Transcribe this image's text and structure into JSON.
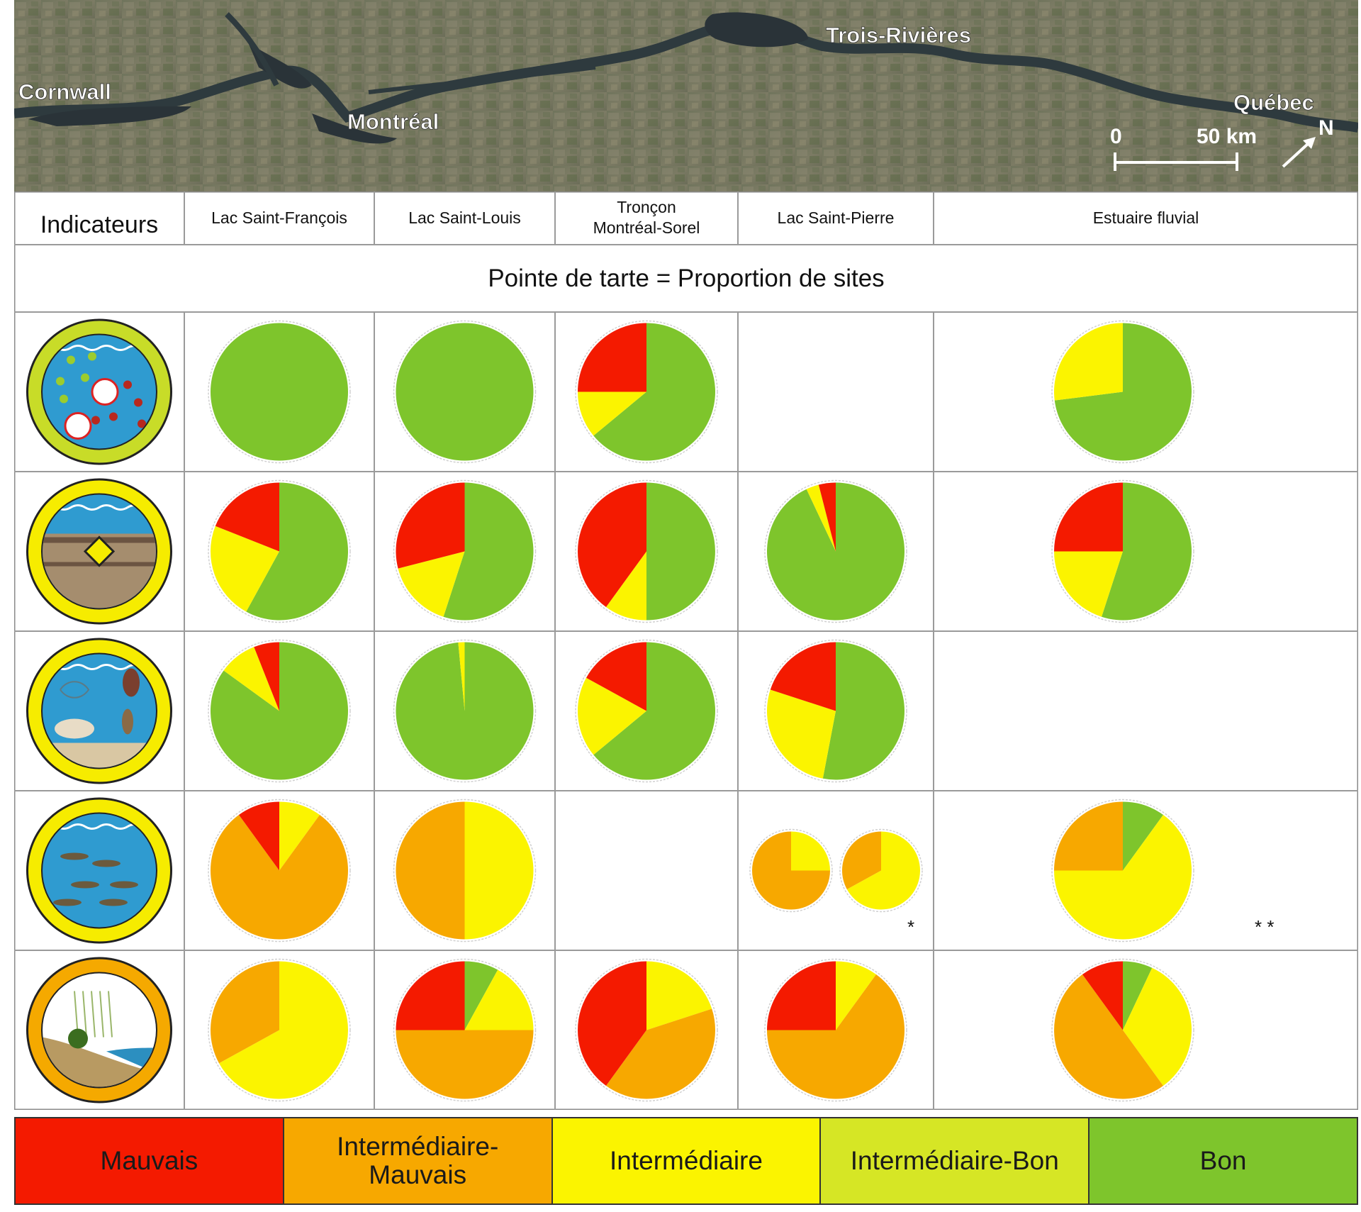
{
  "map": {
    "places": [
      "Cornwall",
      "Montréal",
      "Trois-Rivières",
      "Québec"
    ],
    "scale_start": "0",
    "scale_end": "50 km",
    "north": "N"
  },
  "table": {
    "indicators_header": "Indicateurs",
    "sectors": [
      "Lac Saint-François",
      "Lac Saint-Louis",
      "Tronçon\nMontréal-Sorel",
      "Lac Saint-Pierre",
      "Estuaire fluvial"
    ],
    "subtitle": "Pointe de tarte = Proportion de sites",
    "indicator_icons": [
      "nutrients-icon",
      "sediment-icon",
      "invertebrates-icon",
      "fish-icon",
      "wetland-plants-icon"
    ],
    "indicator_ring_colors": [
      "#c8dc28",
      "#f6ec00",
      "#f6ec00",
      "#f6ec00",
      "#f5a900"
    ]
  },
  "colors": {
    "Mauvais": "#f41a00",
    "Intermédiaire-Mauvais": "#f7a800",
    "Intermédiaire": "#fbf400",
    "Intermédiaire-Bon": "#d6e625",
    "Bon": "#7ec52c"
  },
  "legend": [
    {
      "label": "Mauvais",
      "color": "#f41a00"
    },
    {
      "label": "Intermédiaire-\nMauvais",
      "color": "#f7a800"
    },
    {
      "label": "Intermédiaire",
      "color": "#fbf400"
    },
    {
      "label": "Intermédiaire-Bon",
      "color": "#d6e625"
    },
    {
      "label": "Bon",
      "color": "#7ec52c"
    }
  ],
  "chart_data": {
    "type": "pie",
    "title": "Pointe de tarte = Proportion de sites",
    "categories": [
      "Mauvais",
      "Intermédiaire-Mauvais",
      "Intermédiaire",
      "Intermédiaire-Bon",
      "Bon"
    ],
    "rows": [
      {
        "row": 1,
        "cells": [
          {
            "sector": "Lac Saint-François",
            "pies": [
              {
                "Bon": 1.0
              }
            ]
          },
          {
            "sector": "Lac Saint-Louis",
            "pies": [
              {
                "Bon": 1.0
              }
            ]
          },
          {
            "sector": "Tronçon Montréal-Sorel",
            "pies": [
              {
                "Bon": 0.64,
                "Intermédiaire": 0.11,
                "Mauvais": 0.25
              }
            ]
          },
          {
            "sector": "Lac Saint-Pierre",
            "pies": []
          },
          {
            "sector": "Estuaire fluvial",
            "pies": [
              {
                "Bon": 0.73,
                "Intermédiaire": 0.27
              }
            ]
          }
        ]
      },
      {
        "row": 2,
        "cells": [
          {
            "sector": "Lac Saint-François",
            "pies": [
              {
                "Bon": 0.58,
                "Intermédiaire": 0.23,
                "Mauvais": 0.19
              }
            ]
          },
          {
            "sector": "Lac Saint-Louis",
            "pies": [
              {
                "Bon": 0.55,
                "Intermédiaire": 0.16,
                "Mauvais": 0.29
              }
            ]
          },
          {
            "sector": "Tronçon Montréal-Sorel",
            "pies": [
              {
                "Bon": 0.5,
                "Intermédiaire": 0.1,
                "Mauvais": 0.4
              }
            ]
          },
          {
            "sector": "Lac Saint-Pierre",
            "pies": [
              {
                "Bon": 0.93,
                "Intermédiaire": 0.03,
                "Mauvais": 0.04
              }
            ]
          },
          {
            "sector": "Estuaire fluvial",
            "pies": [
              {
                "Bon": 0.55,
                "Intermédiaire": 0.2,
                "Mauvais": 0.25
              }
            ]
          }
        ]
      },
      {
        "row": 3,
        "cells": [
          {
            "sector": "Lac Saint-François",
            "pies": [
              {
                "Bon": 0.85,
                "Intermédiaire": 0.09,
                "Mauvais": 0.06
              }
            ]
          },
          {
            "sector": "Lac Saint-Louis",
            "pies": [
              {
                "Bon": 0.985,
                "Intermédiaire": 0.015
              }
            ]
          },
          {
            "sector": "Tronçon Montréal-Sorel",
            "pies": [
              {
                "Bon": 0.64,
                "Intermédiaire": 0.19,
                "Mauvais": 0.17
              }
            ]
          },
          {
            "sector": "Lac Saint-Pierre",
            "pies": [
              {
                "Bon": 0.53,
                "Intermédiaire": 0.27,
                "Mauvais": 0.2
              }
            ]
          },
          {
            "sector": "Estuaire fluvial",
            "pies": []
          }
        ]
      },
      {
        "row": 4,
        "cells": [
          {
            "sector": "Lac Saint-François",
            "pies": [
              {
                "Intermédiaire": 0.1,
                "Intermédiaire-Mauvais": 0.8,
                "Mauvais": 0.1
              }
            ]
          },
          {
            "sector": "Lac Saint-Louis",
            "pies": [
              {
                "Intermédiaire": 0.5,
                "Intermédiaire-Mauvais": 0.5
              }
            ]
          },
          {
            "sector": "Tronçon Montréal-Sorel",
            "pies": []
          },
          {
            "sector": "Lac Saint-Pierre",
            "pies": [
              {
                "Intermédiaire": 0.25,
                "Intermédiaire-Mauvais": 0.75
              },
              {
                "Intermédiaire": 0.67,
                "Intermédiaire-Mauvais": 0.33
              }
            ],
            "note": "*"
          },
          {
            "sector": "Estuaire fluvial",
            "pies": [
              {
                "Bon": 0.1,
                "Intermédiaire": 0.65,
                "Intermédiaire-Mauvais": 0.25
              }
            ],
            "note": "* *"
          }
        ]
      },
      {
        "row": 5,
        "cells": [
          {
            "sector": "Lac Saint-François",
            "pies": [
              {
                "Intermédiaire": 0.67,
                "Intermédiaire-Mauvais": 0.33
              }
            ]
          },
          {
            "sector": "Lac Saint-Louis",
            "pies": [
              {
                "Bon": 0.08,
                "Intermédiaire": 0.17,
                "Intermédiaire-Mauvais": 0.5,
                "Mauvais": 0.25
              }
            ]
          },
          {
            "sector": "Tronçon Montréal-Sorel",
            "pies": [
              {
                "Intermédiaire": 0.2,
                "Intermédiaire-Mauvais": 0.4,
                "Mauvais": 0.4
              }
            ]
          },
          {
            "sector": "Lac Saint-Pierre",
            "pies": [
              {
                "Intermédiaire": 0.1,
                "Intermédiaire-Mauvais": 0.65,
                "Mauvais": 0.25
              }
            ]
          },
          {
            "sector": "Estuaire fluvial",
            "pies": [
              {
                "Bon": 0.07,
                "Intermédiaire": 0.33,
                "Intermédiaire-Mauvais": 0.5,
                "Mauvais": 0.1
              }
            ]
          }
        ]
      }
    ]
  }
}
